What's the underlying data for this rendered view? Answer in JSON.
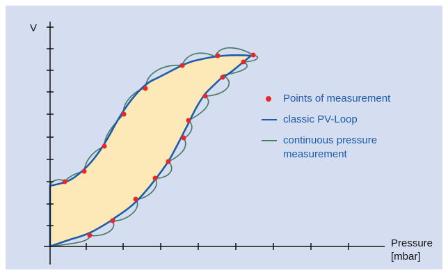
{
  "axes": {
    "y_label": "V",
    "x_label": "Pressure",
    "x_unit": "[mbar]"
  },
  "legend": {
    "items": [
      {
        "label": "Points of measurement",
        "marker": "red-dot",
        "color": "#e8262b"
      },
      {
        "label": "classic PV-Loop",
        "marker": "blue-line",
        "color": "#1d5ca8"
      },
      {
        "label": "continuous pressure measurement",
        "marker": "green-line",
        "color": "#4a7c65"
      }
    ]
  },
  "colors": {
    "panel_background": "#d4def0",
    "loop_fill": "#fde8b8",
    "classic_loop": "#1d5ca8",
    "continuous_measurement": "#4a7c65",
    "measurement_points": "#e8262b",
    "axes": "#111111"
  }
}
